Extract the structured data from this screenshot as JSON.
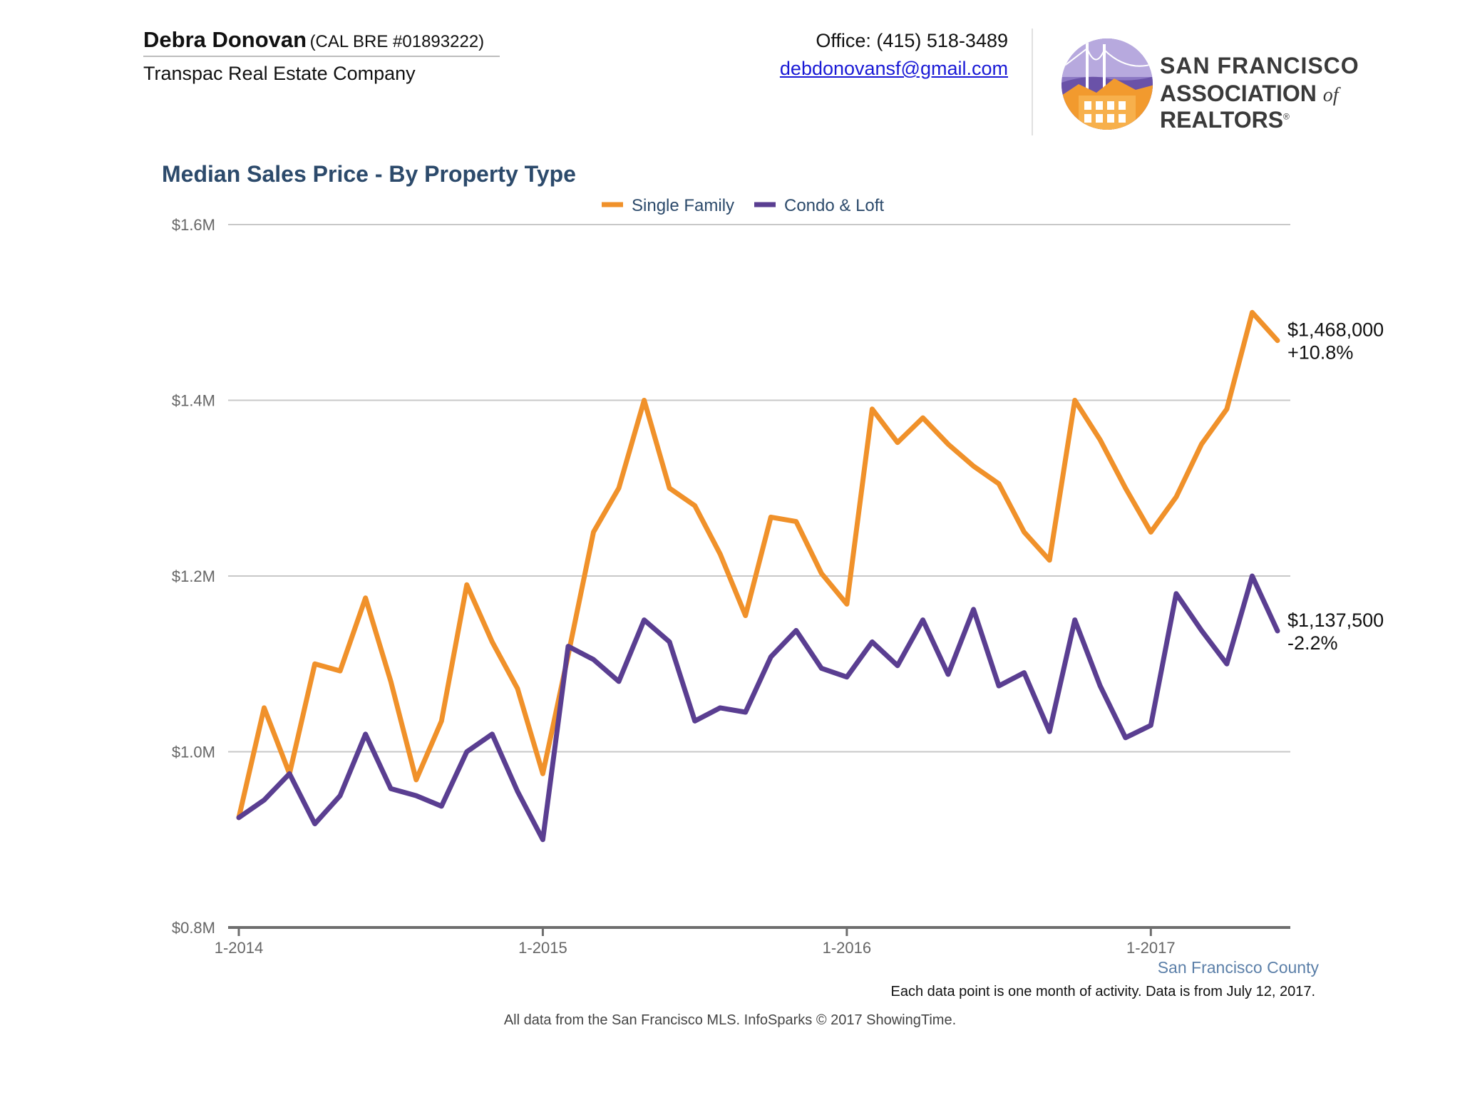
{
  "header": {
    "agent_name": "Debra Donovan",
    "agent_license": "(CAL BRE #01893222)",
    "company": "Transpac Real Estate Company",
    "office": "Office: (415) 518-3489",
    "email": "debdonovansf@gmail.com",
    "logo_line1": "San Francisco",
    "logo_line2_a": "Association ",
    "logo_line2_of": "of",
    "logo_line2_b": " Realtors",
    "logo_reg": "®"
  },
  "colors": {
    "single_family": "#f0912a",
    "condo_loft": "#5a3e91",
    "title": "#2c4a6b",
    "grid": "#c8c8c8",
    "axis": "#6e6e6e"
  },
  "chart_data": {
    "type": "line",
    "title": "Median Sales Price - By Property Type",
    "xlabel": "",
    "ylabel": "",
    "ylim": [
      800000,
      1600000
    ],
    "y_ticks": [
      {
        "value": 800000,
        "label": "$0.8M"
      },
      {
        "value": 1000000,
        "label": "$1.0M"
      },
      {
        "value": 1200000,
        "label": "$1.2M"
      },
      {
        "value": 1400000,
        "label": "$1.4M"
      },
      {
        "value": 1600000,
        "label": "$1.6M"
      }
    ],
    "x_ticks": [
      {
        "index": 0,
        "label": "1-2014"
      },
      {
        "index": 12,
        "label": "1-2015"
      },
      {
        "index": 24,
        "label": "1-2016"
      },
      {
        "index": 36,
        "label": "1-2017"
      }
    ],
    "x": [
      "2014-01",
      "2014-02",
      "2014-03",
      "2014-04",
      "2014-05",
      "2014-06",
      "2014-07",
      "2014-08",
      "2014-09",
      "2014-10",
      "2014-11",
      "2014-12",
      "2015-01",
      "2015-02",
      "2015-03",
      "2015-04",
      "2015-05",
      "2015-06",
      "2015-07",
      "2015-08",
      "2015-09",
      "2015-10",
      "2015-11",
      "2015-12",
      "2016-01",
      "2016-02",
      "2016-03",
      "2016-04",
      "2016-05",
      "2016-06",
      "2016-07",
      "2016-08",
      "2016-09",
      "2016-10",
      "2016-11",
      "2016-12",
      "2017-01",
      "2017-02",
      "2017-03",
      "2017-04",
      "2017-05",
      "2017-06"
    ],
    "legend_position": "top-center",
    "grid": true,
    "series": [
      {
        "name": "Single Family",
        "color_key": "single_family",
        "values": [
          925000,
          1050000,
          975000,
          1100000,
          1092000,
          1175000,
          1080000,
          968000,
          1035000,
          1190000,
          1125000,
          1072000,
          975000,
          1110000,
          1250000,
          1300000,
          1400000,
          1300000,
          1280000,
          1225000,
          1155000,
          1267000,
          1262000,
          1203000,
          1168000,
          1390000,
          1352000,
          1380000,
          1350000,
          1325000,
          1305000,
          1250000,
          1218000,
          1400000,
          1355000,
          1300000,
          1250000,
          1290000,
          1350000,
          1390000,
          1500000,
          1468000
        ],
        "end_label": "$1,468,000",
        "end_change": "+10.8%"
      },
      {
        "name": "Condo & Loft",
        "color_key": "condo_loft",
        "values": [
          925000,
          945000,
          975000,
          918000,
          950000,
          1020000,
          958000,
          950000,
          938000,
          1000000,
          1020000,
          955000,
          900000,
          1120000,
          1105000,
          1080000,
          1150000,
          1125000,
          1035000,
          1050000,
          1045000,
          1108000,
          1138000,
          1095000,
          1085000,
          1125000,
          1098000,
          1150000,
          1088000,
          1162000,
          1075000,
          1090000,
          1023000,
          1150000,
          1075000,
          1016000,
          1030000,
          1180000,
          1138000,
          1100000,
          1200000,
          1137500
        ],
        "end_label": "$1,137,500",
        "end_change": "-2.2%"
      }
    ]
  },
  "footer": {
    "county": "San Francisco County",
    "note": "Each data point is one month of activity. Data is from July 12, 2017.",
    "source": "All data from the San Francisco MLS. InfoSparks © 2017 ShowingTime."
  }
}
